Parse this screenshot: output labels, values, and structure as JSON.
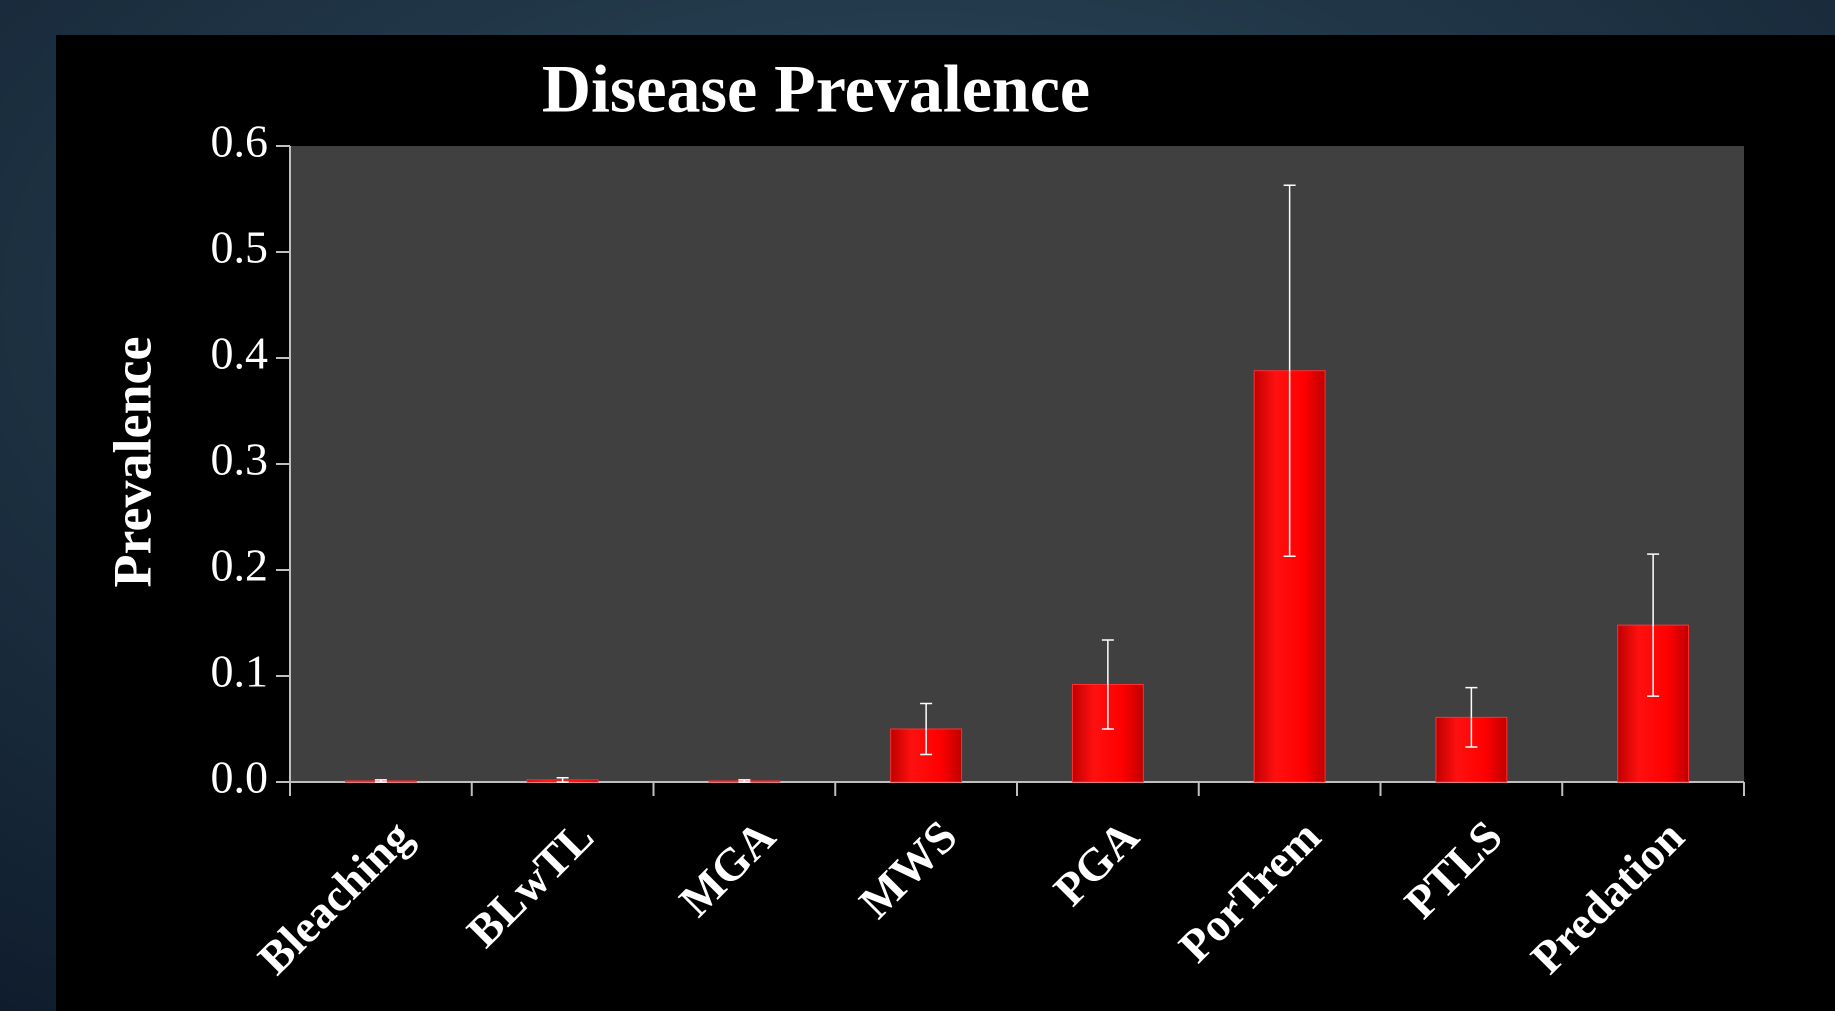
{
  "chart_data": {
    "type": "bar",
    "title": "Disease Prevalence",
    "y_label": "Prevalence",
    "categories": [
      "Bleaching",
      "BLwTL",
      "MGA",
      "MWS",
      "PGA",
      "PorTrem",
      "PTLS",
      "Predation"
    ],
    "values": [
      0.001,
      0.002,
      0.001,
      0.05,
      0.092,
      0.388,
      0.061,
      0.148
    ],
    "errors": [
      0.001,
      0.002,
      0.001,
      0.024,
      0.042,
      0.175,
      0.028,
      0.067
    ],
    "color": "#ff0000",
    "ylim": [
      0,
      0.6
    ],
    "yticks": [
      {
        "value": 0,
        "label": "0.0"
      },
      0.1,
      0.2,
      0.3,
      0.4,
      0.5,
      0.6
    ],
    "grid": false
  }
}
